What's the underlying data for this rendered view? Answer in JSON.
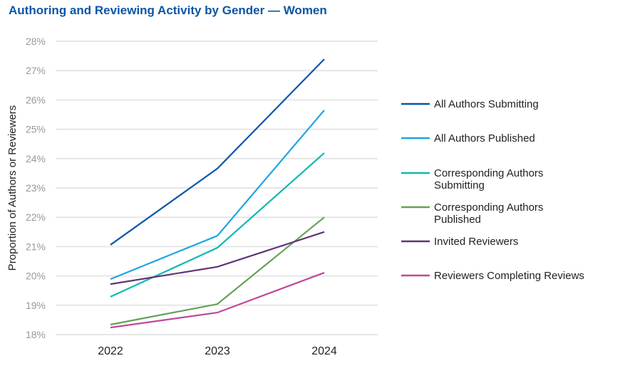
{
  "chart_data": {
    "type": "line",
    "title": "Authoring and Reviewing Activity by Gender — Women",
    "xlabel": "",
    "ylabel": "Proportion of Authors or Reviewers",
    "categories": [
      "2022",
      "2023",
      "2024"
    ],
    "ylim": [
      18,
      28
    ],
    "yticks": [
      "18%",
      "19%",
      "20%",
      "21%",
      "22%",
      "23%",
      "24%",
      "25%",
      "26%",
      "27%",
      "28%"
    ],
    "grid": true,
    "legend_placement": "right",
    "series": [
      {
        "name": "All Authors Submitting",
        "color": "#0b56a4",
        "values": [
          21.06,
          23.66,
          27.39
        ]
      },
      {
        "name": "All Authors Published",
        "color": "#1ea5e3",
        "values": [
          19.89,
          21.37,
          25.65
        ]
      },
      {
        "name": "Corresponding Authors Submitting",
        "color": "#10b8b0",
        "values": [
          19.29,
          20.96,
          24.19
        ]
      },
      {
        "name": "Corresponding Authors Published",
        "color": "#64a255",
        "values": [
          18.34,
          19.04,
          22.0
        ]
      },
      {
        "name": "Invited Reviewers",
        "color": "#63317a",
        "values": [
          19.72,
          20.31,
          21.5
        ]
      },
      {
        "name": "Reviewers Completing Reviews",
        "color": "#c0469a",
        "values": [
          18.24,
          18.75,
          20.11
        ]
      }
    ]
  }
}
